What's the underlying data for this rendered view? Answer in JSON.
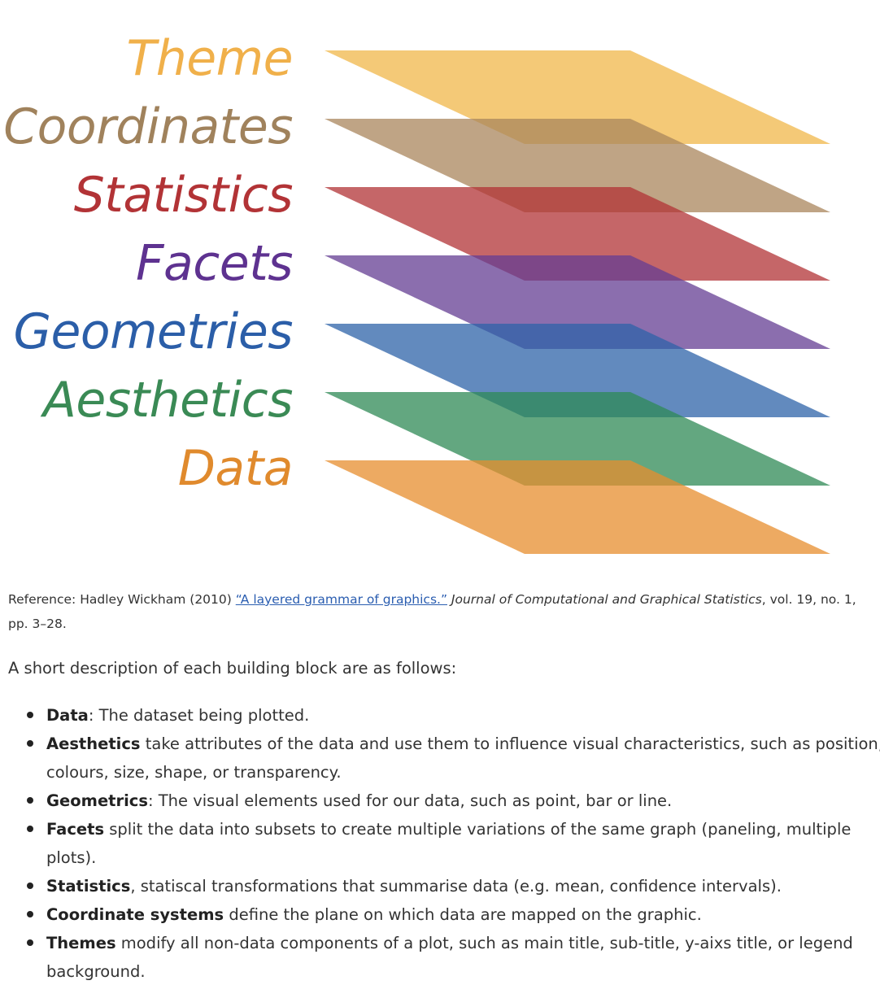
{
  "figure": {
    "layers": [
      {
        "label": "Theme",
        "color": "#f0b74a",
        "label_color": "#f0b04a"
      },
      {
        "label": "Coordinates",
        "color": "#a9865c",
        "label_color": "#a0825c"
      },
      {
        "label": "Statistics",
        "color": "#b23336",
        "label_color": "#b23336"
      },
      {
        "label": "Facets",
        "color": "#643d93",
        "label_color": "#5e3290"
      },
      {
        "label": "Geometries",
        "color": "#2e63a8",
        "label_color": "#2b5ea8"
      },
      {
        "label": "Aesthetics",
        "color": "#2f8a55",
        "label_color": "#3a8a55"
      },
      {
        "label": "Data",
        "color": "#e78d2d",
        "label_color": "#e08a2d"
      }
    ]
  },
  "reference": {
    "prefix": "Reference: Hadley Wickham (2010)",
    "link_text": "“A layered grammar of graphics.”",
    "journal": "Journal of Computational and Graphical Statistics",
    "suffix": ", vol. 19, no. 1, pp. 3–28."
  },
  "intro": "A short description of each building block are as follows:",
  "items": [
    {
      "term": "Data",
      "text": ": The dataset being plotted."
    },
    {
      "term": "Aesthetics",
      "text": " take attributes of the data and use them to influence visual characteristics, such as position, colours, size, shape, or transparency."
    },
    {
      "term": "Geometrics",
      "text": ": The visual elements used for our data, such as point, bar or line."
    },
    {
      "term": "Facets",
      "text": " split the data into subsets to create multiple variations of the same graph (paneling, multiple plots)."
    },
    {
      "term": "Statistics",
      "text": ", statiscal transformations that summarise data (e.g. mean, confidence intervals)."
    },
    {
      "term": "Coordinate systems",
      "text": " define the plane on which data are mapped on the graphic."
    },
    {
      "term": "Themes",
      "text": " modify all non-data components of a plot, such as main title, sub-title, y-aixs title, or legend background."
    }
  ]
}
